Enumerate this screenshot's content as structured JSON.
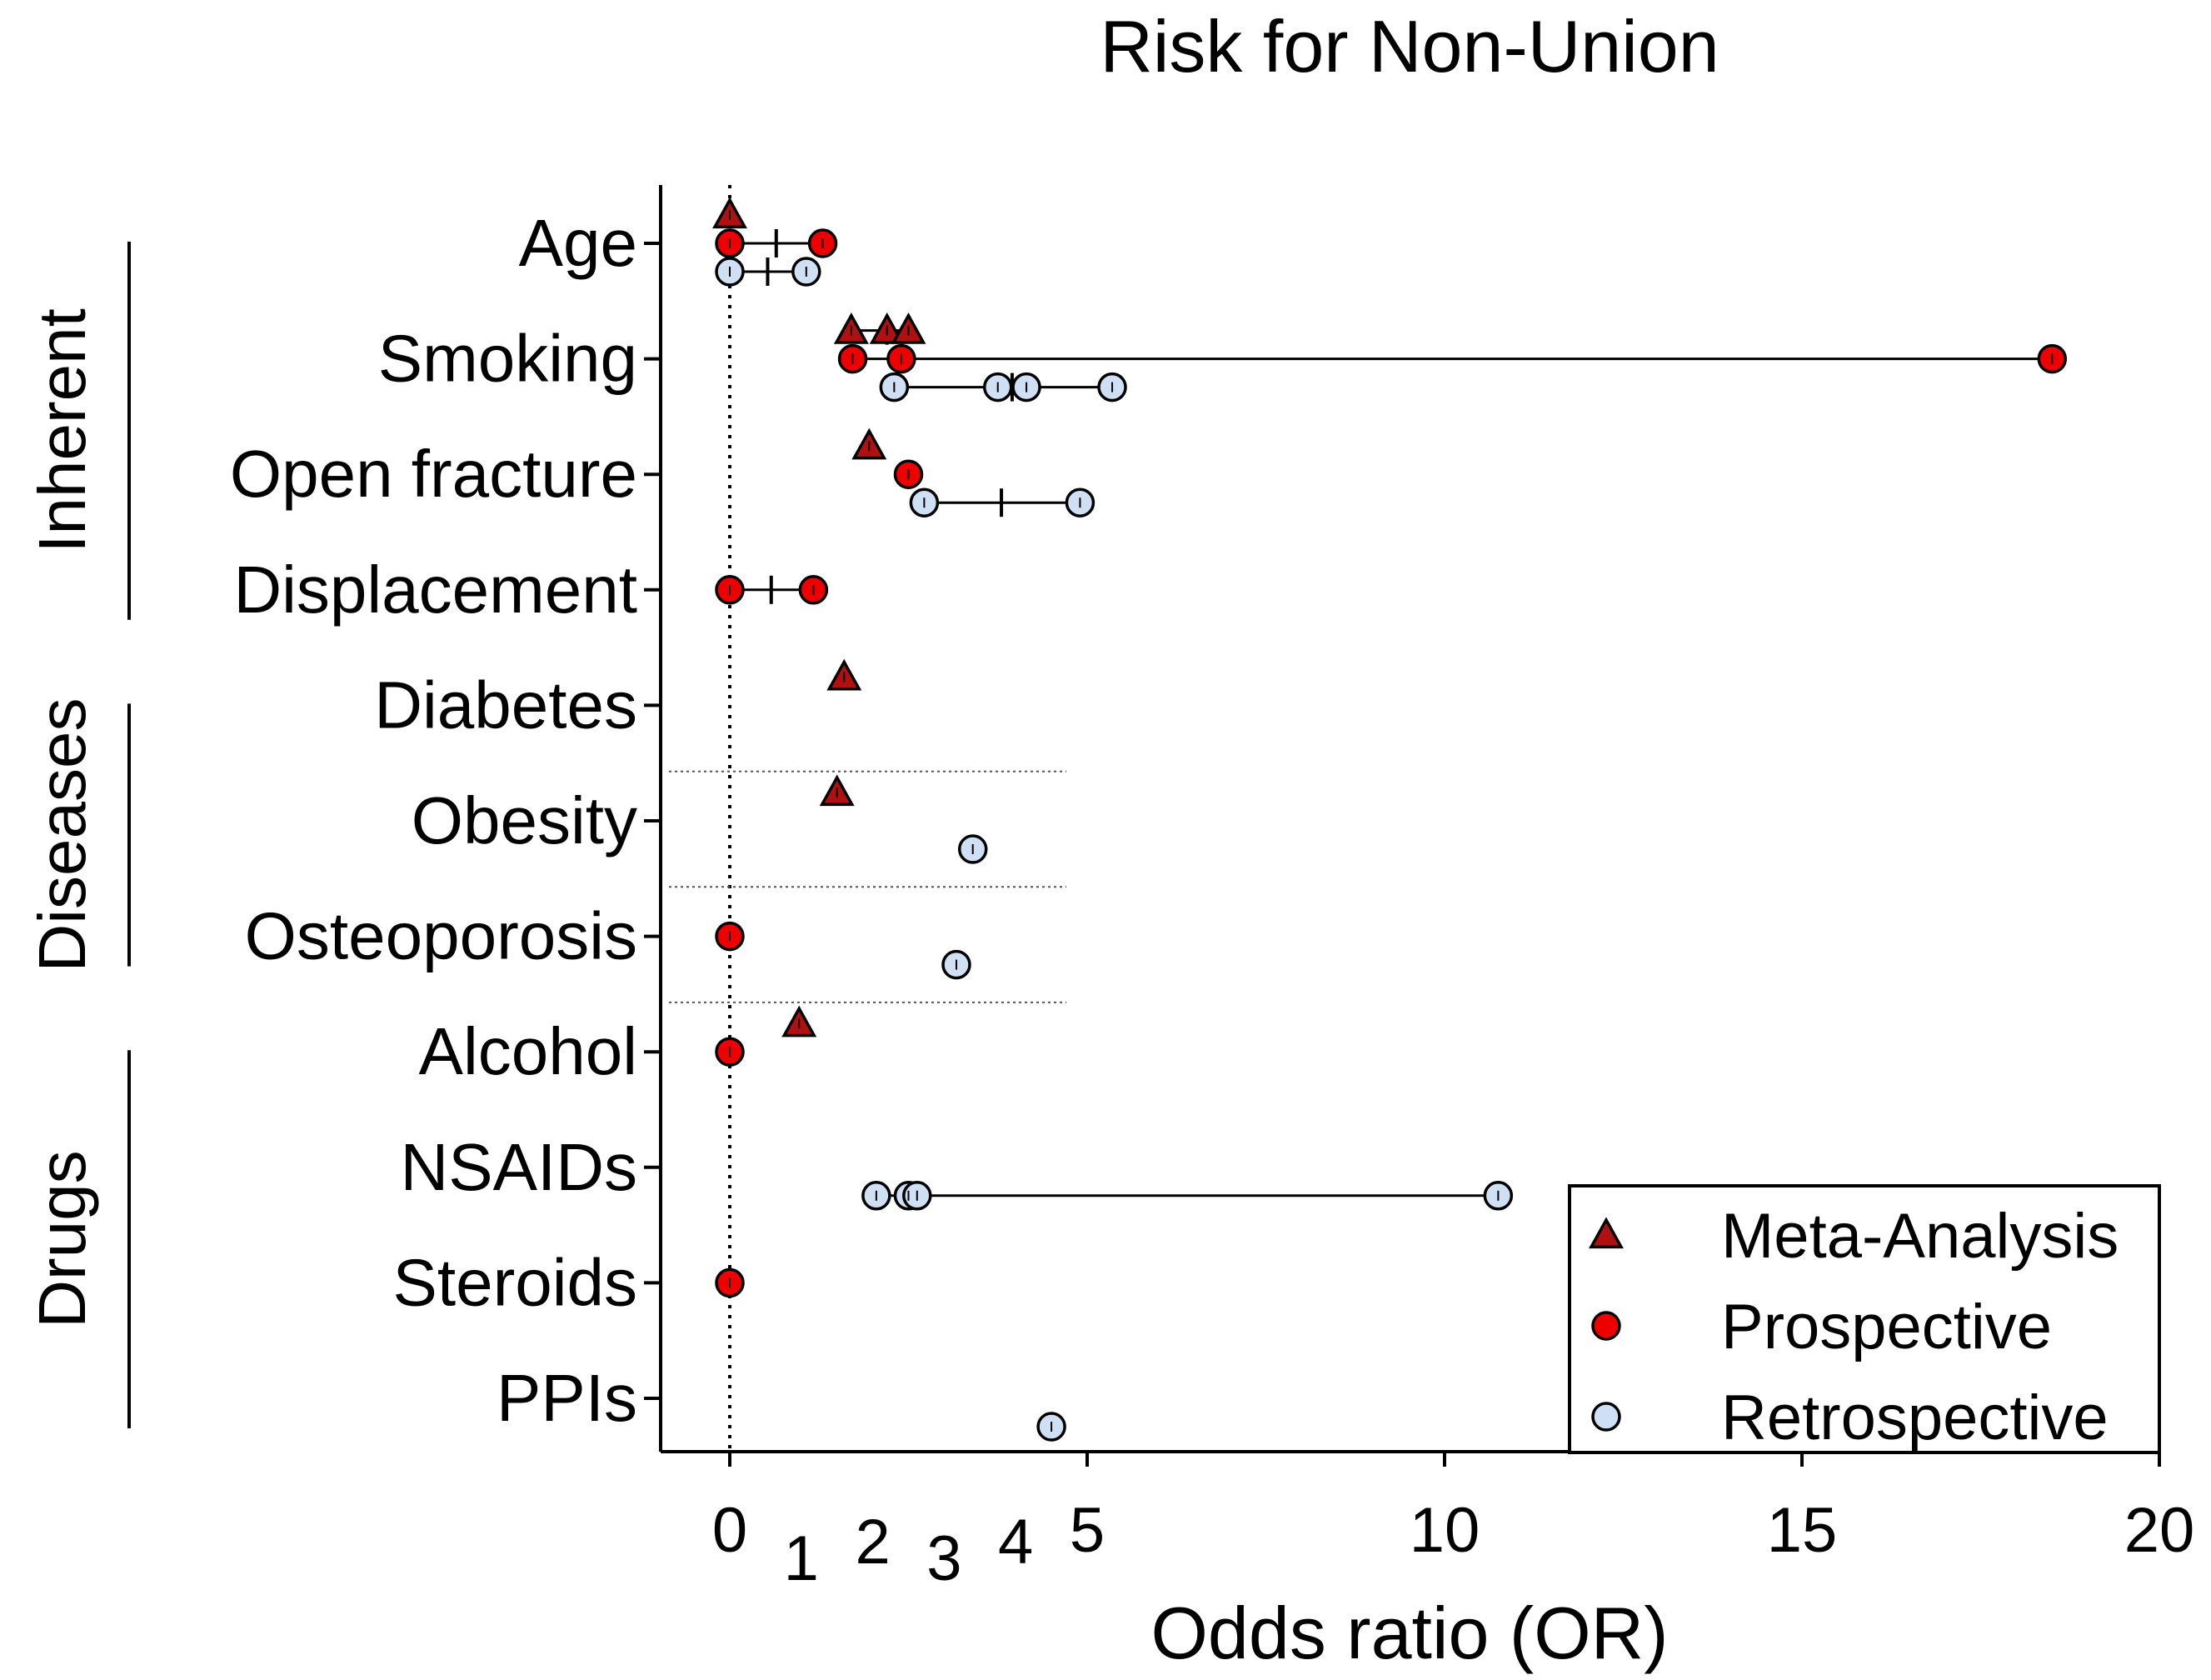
{
  "chart_data": {
    "type": "scatter",
    "title": "Risk for Non-Union",
    "xlabel": "Odds ratio (OR)",
    "ylabel": "",
    "xlim": [
      -1,
      20
    ],
    "x_ticks_major": [
      0,
      5,
      10,
      15,
      20
    ],
    "x_ticks_minor": [
      1,
      2,
      3,
      4
    ],
    "categories": [
      "Age",
      "Smoking",
      "Open fracture",
      "Displacement",
      "Diabetes",
      "Obesity",
      "Osteoporosis",
      "Alcohol",
      "NSAIDs",
      "Steroids",
      "PPIs"
    ],
    "groups": [
      {
        "name": "Inherent",
        "categories": [
          "Age",
          "Smoking",
          "Open fracture",
          "Displacement"
        ]
      },
      {
        "name": "Diseases",
        "categories": [
          "Diabetes",
          "Obesity",
          "Osteoporosis"
        ]
      },
      {
        "name": "Drugs",
        "categories": [
          "Alcohol",
          "NSAIDs",
          "Steroids",
          "PPIs"
        ]
      }
    ],
    "reference_line_x": 0,
    "legend_position": "bottom-right",
    "series": [
      {
        "name": "Meta-Analysis",
        "marker": "triangle",
        "color": "#b01010",
        "data": [
          {
            "category": "Age",
            "values": [
              0.0
            ]
          },
          {
            "category": "Smoking",
            "values": [
              1.7,
              2.2,
              2.5
            ],
            "median": 2.2
          },
          {
            "category": "Open fracture",
            "values": [
              1.95
            ]
          },
          {
            "category": "Diabetes",
            "values": [
              1.6
            ]
          },
          {
            "category": "Obesity",
            "values": [
              1.5
            ]
          },
          {
            "category": "Alcohol",
            "values": [
              0.97
            ]
          }
        ]
      },
      {
        "name": "Prospective",
        "marker": "circle",
        "color": "#ee0000",
        "data": [
          {
            "category": "Age",
            "values": [
              0.0,
              1.3
            ],
            "median": 0.65
          },
          {
            "category": "Smoking",
            "values": [
              1.72,
              2.4,
              18.5
            ],
            "median": 2.4
          },
          {
            "category": "Open fracture",
            "values": [
              2.5
            ]
          },
          {
            "category": "Displacement",
            "values": [
              0.0,
              1.17
            ],
            "median": 0.58
          },
          {
            "category": "Osteoporosis",
            "values": [
              0.0
            ]
          },
          {
            "category": "Alcohol",
            "values": [
              0.0
            ]
          },
          {
            "category": "Steroids",
            "values": [
              0.0
            ]
          }
        ]
      },
      {
        "name": "Retrospective",
        "marker": "circle",
        "color": "#cfe0f5",
        "data": [
          {
            "category": "Age",
            "values": [
              0.0,
              1.07
            ],
            "median": 0.53
          },
          {
            "category": "Smoking",
            "values": [
              2.3,
              3.75,
              4.15,
              5.35
            ],
            "median": 3.95
          },
          {
            "category": "Open fracture",
            "values": [
              2.72,
              4.9
            ],
            "median": 3.8
          },
          {
            "category": "Obesity",
            "values": [
              3.4
            ]
          },
          {
            "category": "Osteoporosis",
            "values": [
              3.17
            ]
          },
          {
            "category": "NSAIDs",
            "values": [
              2.05,
              2.5,
              2.62,
              10.75
            ],
            "median": 2.56
          },
          {
            "category": "PPIs",
            "values": [
              4.5
            ]
          }
        ]
      }
    ]
  }
}
